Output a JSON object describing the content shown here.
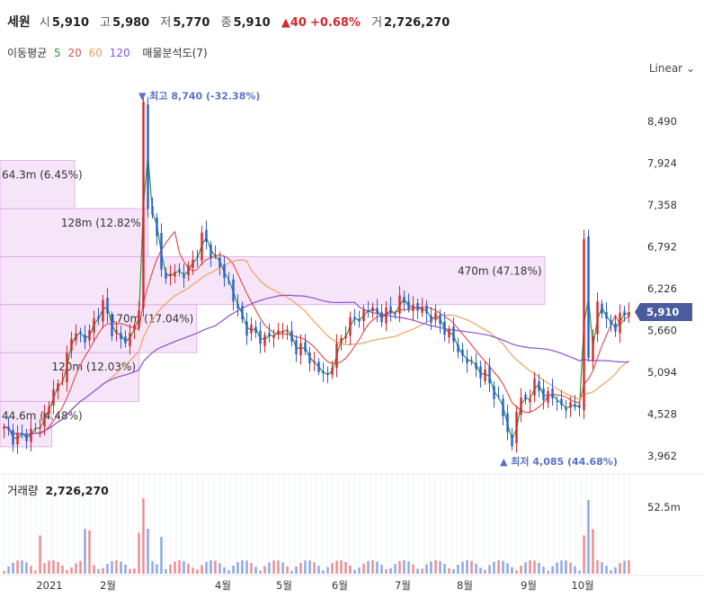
{
  "header": {
    "name": "세원",
    "open_label": "시",
    "open": "5,910",
    "high_label": "고",
    "high": "5,980",
    "low_label": "저",
    "low": "5,770",
    "close_label": "종",
    "close": "5,910",
    "change_arrow": "▲",
    "change": "40",
    "change_pct": "+0.68%",
    "volume_label": "거",
    "volume": "2,726,270"
  },
  "ma_legend": {
    "title": "이동평균",
    "items": [
      {
        "label": "5",
        "color": "#2a9b3c"
      },
      {
        "label": "20",
        "color": "#e35252"
      },
      {
        "label": "60",
        "color": "#f0a05a"
      },
      {
        "label": "120",
        "color": "#8a4fd6"
      }
    ],
    "profile_label": "매물분석도(7)"
  },
  "scale_label": "Linear",
  "volume_panel": {
    "label": "거래량",
    "value": "2,726,270"
  },
  "colors": {
    "up": "#d6282d",
    "down": "#2a5fcf",
    "profile": "#f0d4f5",
    "price_tag": "#4a5c9e"
  },
  "chart_data": {
    "type": "candlestick",
    "price_axis": {
      "ticks": [
        3962,
        4528,
        5094,
        5660,
        6226,
        6792,
        7358,
        7924,
        8490
      ],
      "tick_labels": [
        "3,962",
        "4,528",
        "5,094",
        "5,660",
        "6,226",
        "6,792",
        "7,358",
        "7,924",
        "8,490"
      ]
    },
    "current_price": {
      "value": 5910,
      "label": "5,910"
    },
    "volume_axis": {
      "tick": 52500000,
      "tick_label": "52.5m"
    },
    "x_axis": {
      "labels": [
        "2021",
        "2월",
        "4월",
        "5월",
        "6월",
        "7월",
        "8월",
        "9월",
        "10월"
      ]
    },
    "annotations": [
      {
        "marker": "▼",
        "text": "최고 8,740 (-32.38%)",
        "price": 8740
      },
      {
        "marker": "▲",
        "text": "최저 4,085 (44.68%)",
        "price": 4085
      }
    ],
    "volume_profile": [
      {
        "label": "44.6m (4.48%)",
        "price_low": 4085,
        "price_high": 4700,
        "weight": 0.095
      },
      {
        "label": "120m (12.03%)",
        "price_low": 4700,
        "price_high": 5360,
        "weight": 0.255
      },
      {
        "label": "170m (17.04%)",
        "price_low": 5360,
        "price_high": 6010,
        "weight": 0.361
      },
      {
        "label": "470m (47.18%)",
        "price_low": 6010,
        "price_high": 6660,
        "weight": 1.0
      },
      {
        "label": "128m (12.82%)",
        "price_low": 6660,
        "price_high": 7310,
        "weight": 0.272
      },
      {
        "label": "64.3m (6.45%)",
        "price_low": 7310,
        "price_high": 7960,
        "weight": 0.137
      },
      {
        "label": "",
        "price_low": 7960,
        "price_high": 8740,
        "weight": 0.0
      }
    ],
    "series_anchors": [
      [
        0,
        4310
      ],
      [
        10,
        4230
      ],
      [
        20,
        4200
      ],
      [
        30,
        4300
      ],
      [
        40,
        4350
      ],
      [
        50,
        4700
      ],
      [
        60,
        4900
      ],
      [
        70,
        5300
      ],
      [
        80,
        5700
      ],
      [
        90,
        5500
      ],
      [
        100,
        5800
      ],
      [
        110,
        6000
      ],
      [
        120,
        5700
      ],
      [
        130,
        5500
      ],
      [
        140,
        5600
      ],
      [
        150,
        5900
      ],
      [
        155,
        8740
      ],
      [
        160,
        7400
      ],
      [
        170,
        6900
      ],
      [
        180,
        6300
      ],
      [
        190,
        6500
      ],
      [
        200,
        6400
      ],
      [
        210,
        6600
      ],
      [
        220,
        6900
      ],
      [
        230,
        6750
      ],
      [
        240,
        6500
      ],
      [
        250,
        6300
      ],
      [
        260,
        5900
      ],
      [
        270,
        5700
      ],
      [
        280,
        5600
      ],
      [
        290,
        5550
      ],
      [
        300,
        5600
      ],
      [
        310,
        5700
      ],
      [
        320,
        5500
      ],
      [
        330,
        5400
      ],
      [
        340,
        5300
      ],
      [
        350,
        5100
      ],
      [
        360,
        5050
      ],
      [
        370,
        5400
      ],
      [
        380,
        5700
      ],
      [
        390,
        5800
      ],
      [
        400,
        5900
      ],
      [
        410,
        5950
      ],
      [
        420,
        5850
      ],
      [
        430,
        5900
      ],
      [
        440,
        6050
      ],
      [
        450,
        6000
      ],
      [
        460,
        5950
      ],
      [
        470,
        5900
      ],
      [
        480,
        5800
      ],
      [
        490,
        5700
      ],
      [
        500,
        5500
      ],
      [
        510,
        5300
      ],
      [
        520,
        5200
      ],
      [
        530,
        5100
      ],
      [
        540,
        4950
      ],
      [
        550,
        4700
      ],
      [
        560,
        4300
      ],
      [
        565,
        4085
      ],
      [
        570,
        4600
      ],
      [
        580,
        4750
      ],
      [
        590,
        4900
      ],
      [
        600,
        4800
      ],
      [
        610,
        4750
      ],
      [
        620,
        4650
      ],
      [
        630,
        4600
      ],
      [
        640,
        4700
      ],
      [
        645,
        6790
      ],
      [
        650,
        5300
      ],
      [
        660,
        6000
      ],
      [
        670,
        5800
      ],
      [
        680,
        5700
      ],
      [
        690,
        5900
      ],
      [
        700,
        5910
      ]
    ]
  }
}
